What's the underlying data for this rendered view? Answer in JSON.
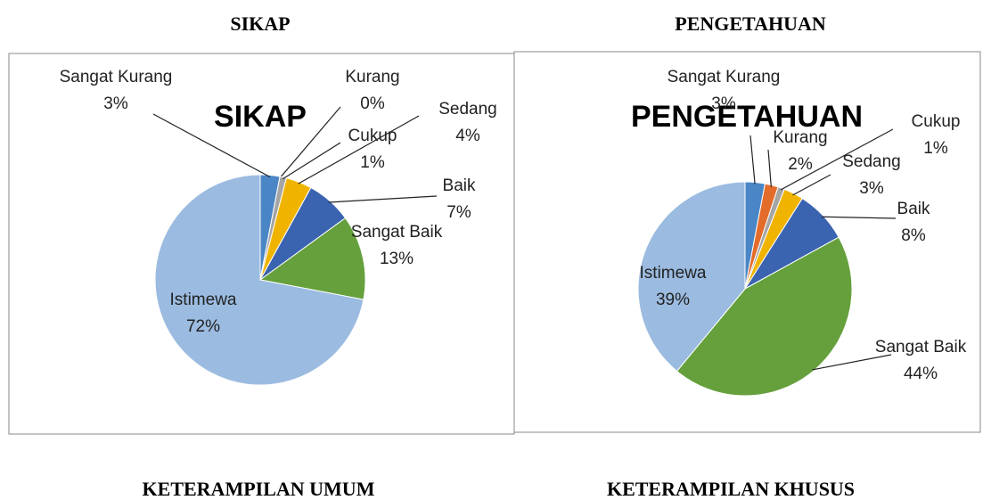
{
  "headings": [
    "SIKAP",
    "PENGETAHUAN",
    "KETERAMPILAN UMUM",
    "KETERAMPILAN KHUSUS"
  ],
  "chart_data": [
    {
      "type": "pie",
      "title": "SIKAP",
      "categories": [
        "Sangat Kurang",
        "Kurang",
        "Cukup",
        "Sedang",
        "Baik",
        "Sangat Baik",
        "Istimewa"
      ],
      "values": [
        3,
        0,
        1,
        4,
        7,
        13,
        72
      ],
      "value_labels": [
        "3%",
        "0%",
        "1%",
        "4%",
        "7%",
        "13%",
        "72%"
      ],
      "colors": [
        "#4a86c5",
        "#e46c2a",
        "#a5a5a5",
        "#f0b400",
        "#3a63b0",
        "#65a03c",
        "#9bbbe0"
      ]
    },
    {
      "type": "pie",
      "title": "PENGETAHUAN",
      "categories": [
        "Sangat Kurang",
        "Kurang",
        "Cukup",
        "Sedang",
        "Baik",
        "Sangat Baik",
        "Istimewa"
      ],
      "values": [
        3,
        2,
        1,
        3,
        8,
        44,
        39
      ],
      "value_labels": [
        "3%",
        "2%",
        "1%",
        "3%",
        "8%",
        "44%",
        "39%"
      ],
      "colors": [
        "#4a86c5",
        "#e46c2a",
        "#a5a5a5",
        "#f0b400",
        "#3a63b0",
        "#65a03c",
        "#9bbbe0"
      ]
    }
  ]
}
